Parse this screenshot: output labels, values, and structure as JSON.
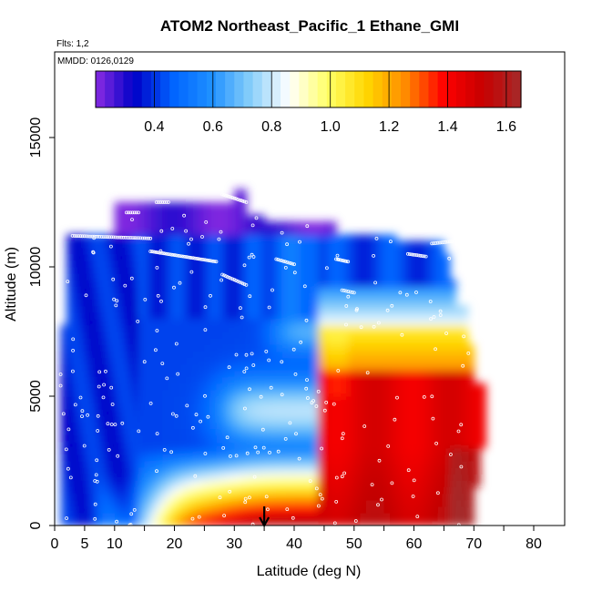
{
  "chart_data": {
    "type": "heatmap",
    "title": "ATOM2 Northeast_Pacific_1 Ethane_GMI",
    "subtitle_flights": "Flts: 1,2",
    "subtitle_dates": "MMDD: 0126,0129",
    "xlabel": "Latitude (deg N)",
    "ylabel": "Altitude (m)",
    "xlim": [
      0,
      82
    ],
    "ylim": [
      0,
      17500
    ],
    "x_ticks": [
      0,
      5,
      10,
      20,
      30,
      40,
      50,
      60,
      70,
      80
    ],
    "x_minor_ticks": [
      0,
      5,
      10,
      15,
      20,
      25,
      30,
      35,
      40,
      45,
      50,
      55,
      60,
      65,
      70,
      75,
      80
    ],
    "x_tick_labels": [
      "0",
      "5",
      "10",
      "20",
      "30",
      "40",
      "50",
      "60",
      "70",
      "80"
    ],
    "y_ticks": [
      0,
      5000,
      10000,
      15000
    ],
    "y_tick_labels": [
      "0",
      "5000",
      "10000",
      "15000"
    ],
    "colorbar": {
      "range": [
        0.2,
        1.65
      ],
      "ticks": [
        0.4,
        0.6,
        0.8,
        1.0,
        1.2,
        1.4,
        1.6
      ],
      "tick_labels": [
        "0.4",
        "0.6",
        "0.8",
        "1.0",
        "1.2",
        "1.4",
        "1.6"
      ],
      "colors": [
        "#8a2be2",
        "#0000c8",
        "#0064ff",
        "#1e90ff",
        "#87cefa",
        "#ffffff",
        "#ffff66",
        "#ffd700",
        "#ff8c00",
        "#ff0000",
        "#c80000",
        "#a52a2a"
      ]
    },
    "marker_latitude": 35,
    "colors": {
      "frame": "#000000",
      "track": "#ffffff"
    }
  }
}
